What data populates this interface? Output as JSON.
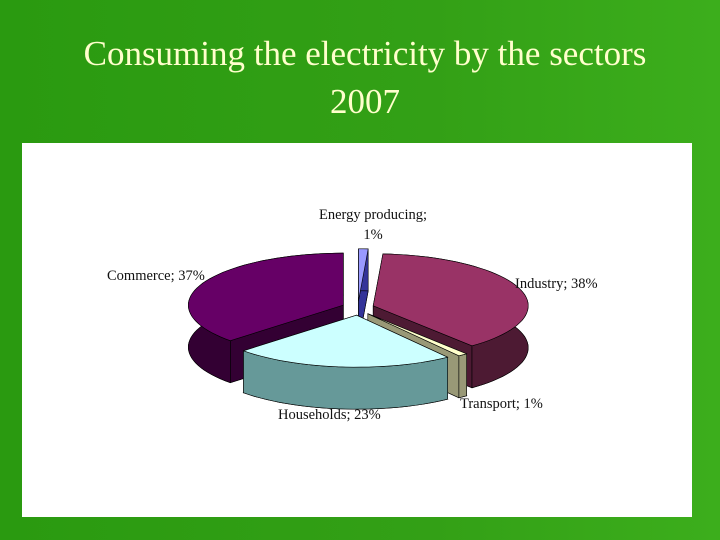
{
  "chart_data": {
    "type": "pie",
    "title": "Consuming the electricity by the sectors 2007",
    "categories": [
      "Energy producing",
      "Industry",
      "Transport",
      "Households",
      "Commerce"
    ],
    "labels": [
      "Energy producing; 1%",
      "Industry; 38%",
      "Transport; 1%",
      "Households; 23%",
      "Commerce; 37%"
    ],
    "values": [
      1,
      38,
      1,
      23,
      37
    ],
    "colors": [
      "#9999ff",
      "#993366",
      "#ffffcc",
      "#ccffff",
      "#660066"
    ],
    "side_colors": [
      "#333399",
      "#4d1a33",
      "#999977",
      "#669999",
      "#330033"
    ]
  }
}
